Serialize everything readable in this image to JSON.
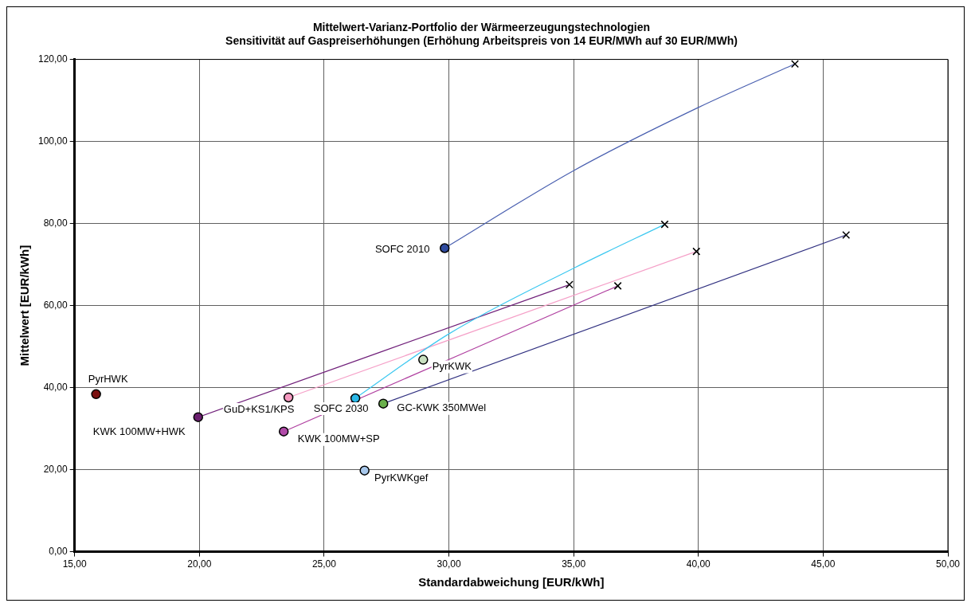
{
  "chart_data": {
    "type": "scatter",
    "title": "Mittelwert-Varianz-Portfolio der Wärmeerzeugungstechnologien\nSensitivität auf Gaspreiserhöhungen (Erhöhung Arbeitspreis von 14 EUR/MWh auf 30 EUR/MWh)",
    "xlabel": "Standardabweichung [EUR/kWh]",
    "ylabel": "Mittelwert [EUR/kWh]",
    "xlim": [
      15,
      50
    ],
    "xticks": [
      {
        "value": 15,
        "label": "15,00"
      },
      {
        "value": 20,
        "label": "20,00"
      },
      {
        "value": 25,
        "label": "25,00"
      },
      {
        "value": 30,
        "label": "30,00"
      },
      {
        "value": 35,
        "label": "35,00"
      },
      {
        "value": 40,
        "label": "40,00"
      },
      {
        "value": 45,
        "label": "45,00"
      },
      {
        "value": 50,
        "label": "50,00"
      }
    ],
    "ylim": [
      0,
      120
    ],
    "yticks": [
      {
        "value": 0,
        "label": "0,00"
      },
      {
        "value": 20,
        "label": "20,00"
      },
      {
        "value": 40,
        "label": "40,00"
      },
      {
        "value": 60,
        "label": "60,00"
      },
      {
        "value": 80,
        "label": "80,00"
      },
      {
        "value": 100,
        "label": "100,00"
      },
      {
        "value": 120,
        "label": "120,00"
      }
    ],
    "grid": true,
    "legend": false,
    "series": [
      {
        "type": "line",
        "marker": "none",
        "color": "#4a60b0",
        "x": [
          29.83,
          35,
          40,
          43.87
        ],
        "values": [
          74.0,
          92.9,
          108.3,
          118.9
        ]
      },
      {
        "type": "line",
        "marker": "none",
        "color": "#3cc8f0",
        "x": [
          26.25,
          30,
          35,
          38.65
        ],
        "values": [
          37.4,
          53.1,
          69.1,
          79.8
        ]
      },
      {
        "type": "line",
        "marker": "none",
        "color": "#f5a0c8",
        "x": [
          23.57,
          39.92
        ],
        "values": [
          37.6,
          73.2
        ]
      },
      {
        "type": "line",
        "marker": "none",
        "color": "#303080",
        "x": [
          27.37,
          45.92
        ],
        "values": [
          36.1,
          77.2
        ]
      },
      {
        "type": "line",
        "marker": "none",
        "color": "#70207a",
        "x": [
          19.95,
          34.83
        ],
        "values": [
          32.8,
          65.1
        ]
      },
      {
        "type": "line",
        "marker": "none",
        "color": "#b040a0",
        "x": [
          23.38,
          36.77
        ],
        "values": [
          29.3,
          64.8
        ]
      },
      {
        "type": "scatter",
        "marker": "circle",
        "name": "PyrHWK",
        "color": "#7a1010",
        "x": [
          15.86
        ],
        "values": [
          38.4
        ]
      },
      {
        "type": "scatter",
        "marker": "circle",
        "name": "KWK 100MW+HWK",
        "color": "#6a1f6e",
        "x": [
          19.95
        ],
        "values": [
          32.8
        ]
      },
      {
        "type": "scatter",
        "marker": "circle",
        "name": "GuD+KS1/KPS",
        "color": "#f59ac0",
        "x": [
          23.57
        ],
        "values": [
          37.6
        ]
      },
      {
        "type": "scatter",
        "marker": "circle",
        "name": "SOFC 2030",
        "color": "#2ab8e8",
        "x": [
          26.25
        ],
        "values": [
          37.4
        ]
      },
      {
        "type": "scatter",
        "marker": "circle",
        "name": "GC-KWK 350MWel",
        "color": "#6ab04c",
        "x": [
          27.37
        ],
        "values": [
          36.1
        ]
      },
      {
        "type": "scatter",
        "marker": "circle",
        "name": "KWK 100MW+SP",
        "color": "#b04aa8",
        "x": [
          23.38
        ],
        "values": [
          29.3
        ]
      },
      {
        "type": "scatter",
        "marker": "circle",
        "name": "PyrKWKgef",
        "color": "#a8c8ec",
        "x": [
          26.62
        ],
        "values": [
          19.8
        ]
      },
      {
        "type": "scatter",
        "marker": "circle",
        "name": "PyrKWK",
        "color": "#c8e0c0",
        "x": [
          28.97
        ],
        "values": [
          46.8
        ]
      },
      {
        "type": "scatter",
        "marker": "circle",
        "name": "SOFC 2010",
        "color": "#2e4a9e",
        "x": [
          29.83
        ],
        "values": [
          74.0
        ]
      },
      {
        "type": "scatter",
        "marker": "cross",
        "color": "#000000",
        "x": [
          43.87,
          38.65,
          39.92,
          45.92,
          34.83,
          36.77
        ],
        "values": [
          118.9,
          79.8,
          73.2,
          77.2,
          65.1,
          64.8
        ]
      }
    ]
  }
}
